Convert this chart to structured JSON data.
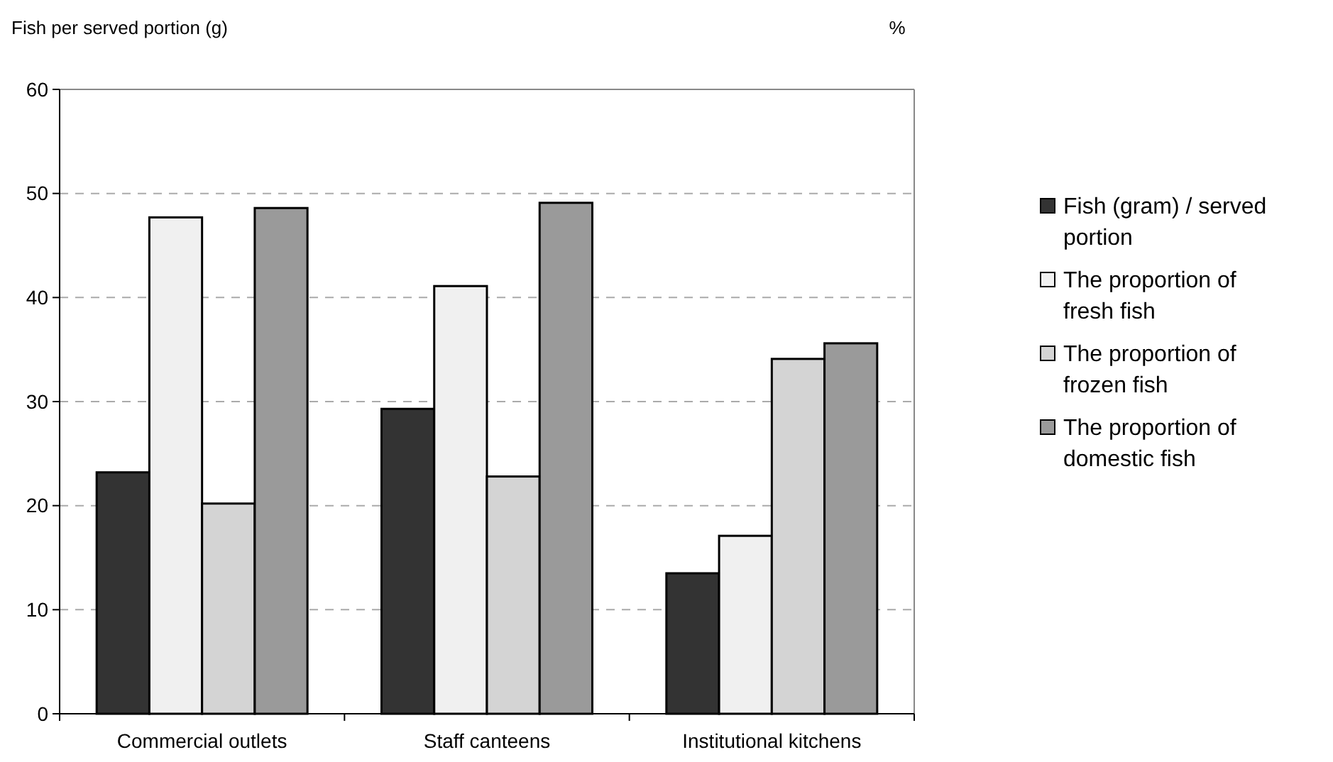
{
  "chart_data": {
    "type": "bar",
    "ylabel": "Fish per served portion (g)",
    "annotations": [
      "%"
    ],
    "categories": [
      "Commercial outlets",
      "Staff canteens",
      "Institutional kitchens"
    ],
    "series": [
      {
        "name": "Fish (gram) / served portion",
        "color": "#333333",
        "values": [
          23.2,
          29.3,
          13.5
        ]
      },
      {
        "name": "The proportion of fresh fish",
        "color": "#f0f0f0",
        "values": [
          47.7,
          41.1,
          17.1
        ]
      },
      {
        "name": "The proportion of frozen fish",
        "color": "#d4d4d4",
        "values": [
          20.2,
          22.8,
          34.1
        ]
      },
      {
        "name": "The proportion of domestic fish",
        "color": "#9a9a9a",
        "values": [
          48.6,
          49.1,
          35.6
        ]
      }
    ],
    "ylim": [
      0,
      60
    ],
    "yticks": [
      0,
      10,
      20,
      30,
      40,
      50,
      60
    ],
    "grid": "y",
    "legend": "right"
  }
}
